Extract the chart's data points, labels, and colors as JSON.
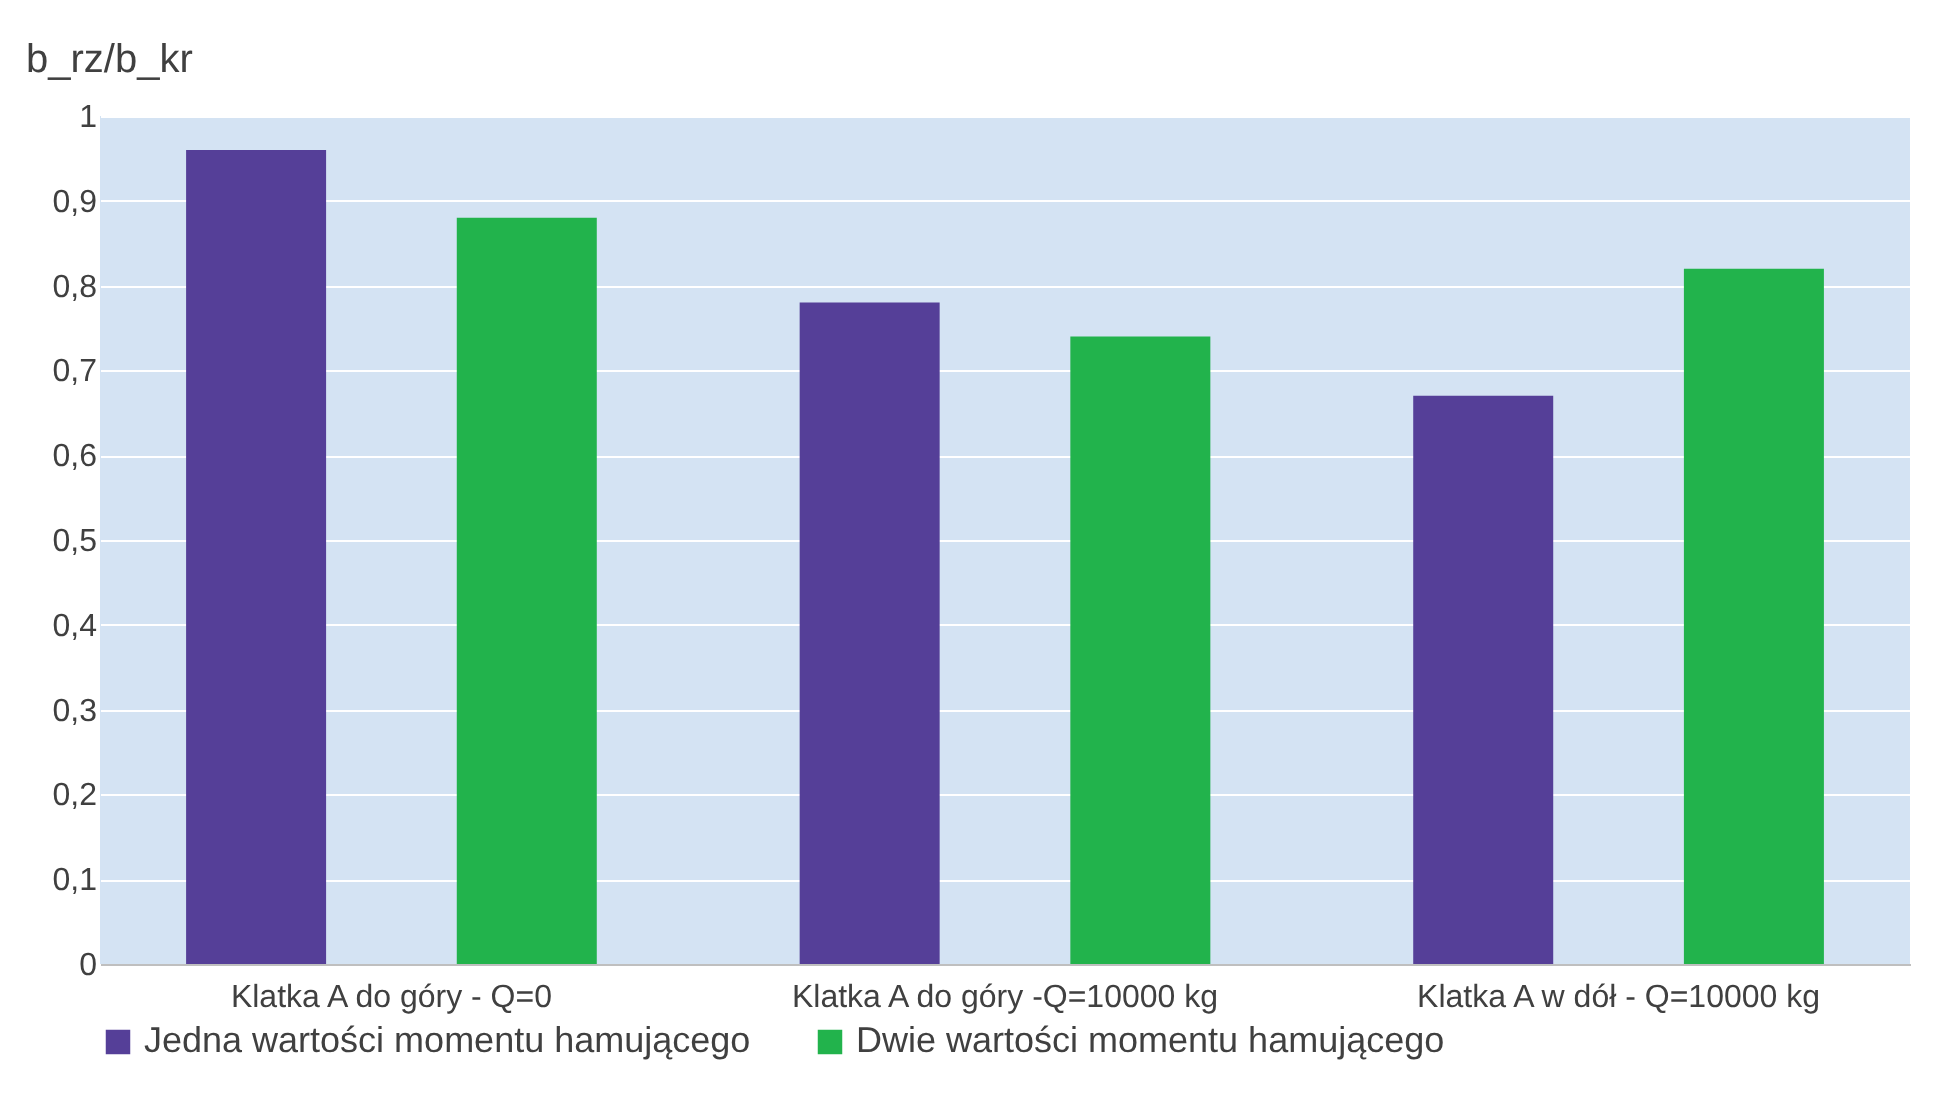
{
  "chart_data": {
    "type": "bar",
    "ylabel": "b_rz/b_kr",
    "categories": [
      "Klatka A do góry - Q=0",
      "Klatka A do góry  -Q=10000 kg",
      "Klatka A w dół - Q=10000 kg"
    ],
    "series": [
      {
        "name": "Jedna wartości momentu hamującego",
        "color": "#553f98",
        "values": [
          0.96,
          0.78,
          0.67
        ]
      },
      {
        "name": "Dwie wartości momentu hamującego",
        "color": "#22b34c",
        "values": [
          0.88,
          0.74,
          0.82
        ]
      }
    ],
    "ylim": [
      0,
      1
    ],
    "yticks": [
      0,
      {
        "value": 0.1,
        "label": "0,1"
      },
      {
        "value": 0.2,
        "label": "0,2"
      },
      {
        "value": 0.3,
        "label": "0,3"
      },
      {
        "value": 0.4,
        "label": "0,4"
      },
      {
        "value": 0.5,
        "label": "0,5"
      },
      {
        "value": 0.6,
        "label": "0,6"
      },
      {
        "value": 0.7,
        "label": "0,7"
      },
      {
        "value": 0.8,
        "label": "0,8"
      },
      {
        "value": 0.9,
        "label": "0,9"
      },
      1
    ],
    "grid": "y",
    "legend": "bottom"
  }
}
